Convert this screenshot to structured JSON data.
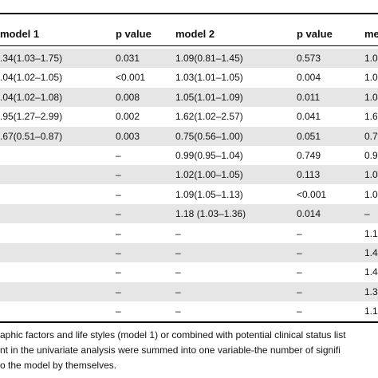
{
  "table": {
    "header": [
      "model 1",
      "p value",
      "model 2",
      "p value",
      "me"
    ],
    "rows": [
      [
        ".34(1.03–1.75)",
        "0.031",
        "1.09(0.81–1.45)",
        "0.573",
        "1.0"
      ],
      [
        ".04(1.02–1.05)",
        "<0.001",
        "1.03(1.01–1.05)",
        "0.004",
        "1.0"
      ],
      [
        ".04(1.02–1.08)",
        "0.008",
        "1.05(1.01–1.09)",
        "0.011",
        "1.0"
      ],
      [
        ".95(1.27–2.99)",
        "0.002",
        "1.62(1.02–2.57)",
        "0.041",
        "1.6"
      ],
      [
        ".67(0.51–0.87)",
        "0.003",
        "0.75(0.56–1.00)",
        "0.051",
        "0.7"
      ],
      [
        null,
        "–",
        "0.99(0.95–1.04)",
        "0.749",
        "0.9"
      ],
      [
        null,
        "–",
        "1.02(1.00–1.05)",
        "0.113",
        "1.0"
      ],
      [
        null,
        "–",
        "1.09(1.05–1.13)",
        "<0.001",
        "1.0"
      ],
      [
        null,
        "–",
        "1.18 (1.03–1.36)",
        "0.014",
        "–"
      ],
      [
        null,
        "–",
        "–",
        "–",
        "1.1"
      ],
      [
        null,
        "–",
        "–",
        "–",
        "1.4"
      ],
      [
        null,
        "–",
        "–",
        "–",
        "1.4"
      ],
      [
        null,
        "–",
        "–",
        "–",
        "1.3"
      ],
      [
        null,
        "–",
        "–",
        "–",
        "1.1"
      ]
    ]
  },
  "footnote": [
    "aphic factors and life styles (model 1) or combined with potential clinical status list",
    "nt in the univariate analysis were summed into one variable-the number of signifi",
    "o the model by themselves."
  ]
}
